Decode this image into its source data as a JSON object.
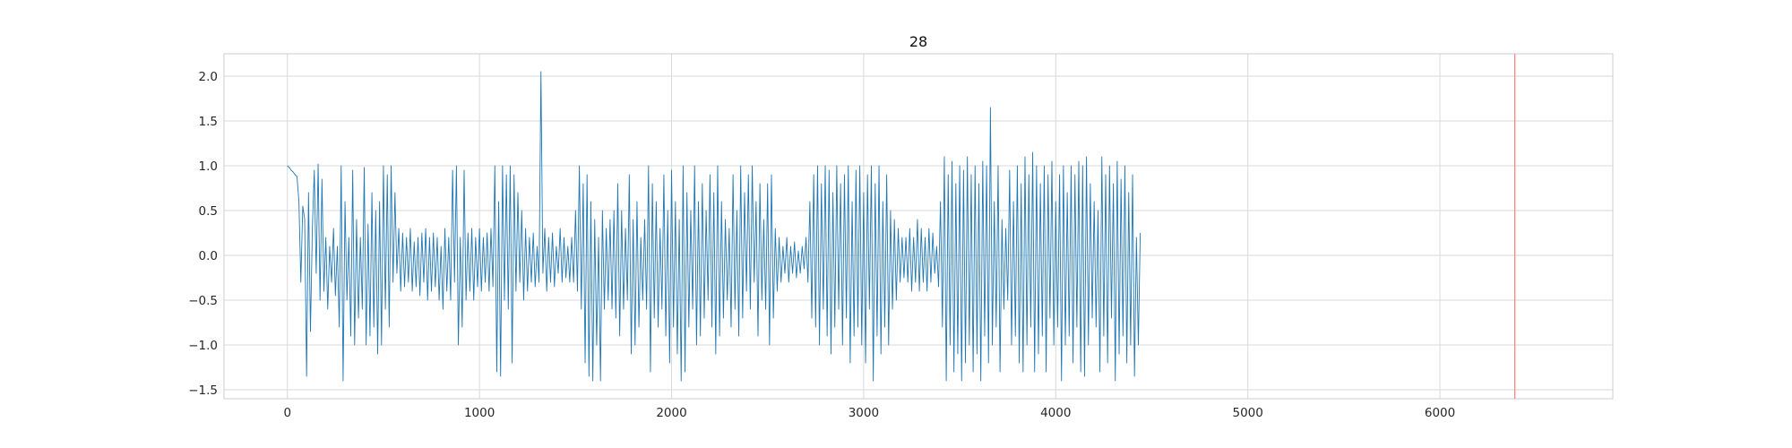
{
  "chart_data": {
    "type": "line",
    "title": "28",
    "xlabel": "",
    "ylabel": "",
    "xlim": [
      -330,
      6900
    ],
    "ylim": [
      -1.6,
      2.25
    ],
    "xticks": [
      0,
      1000,
      2000,
      3000,
      4000,
      5000,
      6000
    ],
    "xtick_labels": [
      "0",
      "1000",
      "2000",
      "3000",
      "4000",
      "5000",
      "6000"
    ],
    "yticks": [
      -1.5,
      -1.0,
      -0.5,
      0.0,
      0.5,
      1.0,
      1.5,
      2.0
    ],
    "ytick_labels": [
      "−1.5",
      "−1.0",
      "−0.5",
      "0.0",
      "0.5",
      "1.0",
      "1.5",
      "2.0"
    ],
    "grid": true,
    "vline": {
      "x": 6390,
      "color": "#f08080"
    },
    "series": [
      {
        "color": "#1f77b4",
        "x_start": 0,
        "x_step": 10,
        "values": [
          1.0,
          0.98,
          0.95,
          0.93,
          0.9,
          0.88,
          0.6,
          -0.3,
          0.55,
          0.4,
          -1.35,
          0.7,
          -0.85,
          0.3,
          0.95,
          -0.2,
          1.02,
          -0.5,
          0.85,
          -0.4,
          0.2,
          -0.6,
          0.1,
          -0.3,
          0.3,
          -0.45,
          0.1,
          -0.8,
          1.0,
          -1.4,
          0.6,
          -0.5,
          0.2,
          -0.9,
          0.95,
          -1.0,
          0.4,
          -0.7,
          0.2,
          -0.6,
          0.98,
          -1.0,
          0.35,
          -0.9,
          0.7,
          -0.8,
          0.5,
          -1.1,
          0.6,
          -1.0,
          1.0,
          -0.6,
          0.9,
          -0.8,
          1.0,
          -0.3,
          0.7,
          -0.2,
          0.3,
          -0.4,
          0.25,
          -0.35,
          0.2,
          -0.3,
          0.3,
          -0.4,
          0.15,
          -0.35,
          0.2,
          -0.45,
          0.25,
          -0.3,
          0.3,
          -0.5,
          0.2,
          -0.4,
          0.25,
          -0.35,
          0.2,
          -0.5,
          0.1,
          -0.6,
          0.3,
          -0.4,
          0.2,
          -0.5,
          0.95,
          -0.3,
          1.0,
          -1.0,
          0.2,
          -0.8,
          0.95,
          -0.5,
          0.25,
          -0.4,
          0.3,
          -0.5,
          0.2,
          -0.35,
          0.3,
          -0.4,
          0.2,
          -0.3,
          0.25,
          -0.4,
          0.3,
          -0.35,
          1.0,
          -1.3,
          0.6,
          -1.35,
          1.0,
          -0.5,
          0.9,
          -0.6,
          1.0,
          -1.2,
          0.9,
          -0.4,
          0.7,
          -0.3,
          0.5,
          -0.5,
          0.3,
          -0.4,
          0.2,
          -0.3,
          0.25,
          -0.35,
          0.1,
          -0.3,
          2.05,
          -0.2,
          0.3,
          -0.4,
          0.2,
          -0.3,
          0.25,
          -0.35,
          0.1,
          -0.2,
          0.3,
          -0.3,
          0.2,
          -0.25,
          0.1,
          -0.3,
          0.2,
          -0.3,
          0.5,
          -0.4,
          1.0,
          -0.6,
          0.8,
          -1.2,
          0.9,
          -1.35,
          0.6,
          -1.4,
          0.4,
          -1.0,
          0.2,
          -1.4,
          0.5,
          -0.6,
          0.3,
          -0.5,
          0.4,
          -0.6,
          0.5,
          -0.7,
          0.8,
          -0.9,
          0.5,
          -0.6,
          0.3,
          -0.5,
          0.9,
          -1.1,
          0.4,
          -1.0,
          0.6,
          -0.8,
          0.2,
          -0.5,
          0.4,
          -0.6,
          1.0,
          -1.3,
          0.8,
          -0.7,
          0.6,
          -0.8,
          0.3,
          -0.6,
          0.9,
          -0.9,
          0.5,
          -1.2,
          0.95,
          -0.8,
          0.6,
          -1.1,
          0.4,
          -1.4,
          1.0,
          -1.3,
          0.7,
          -0.8,
          0.5,
          -0.6,
          1.0,
          -1.0,
          0.6,
          -0.9,
          0.8,
          -0.7,
          0.5,
          -0.5,
          0.9,
          -0.8,
          0.7,
          -1.1,
          1.0,
          -0.9,
          0.6,
          -0.7,
          0.4,
          -0.5,
          0.3,
          -0.8,
          0.9,
          -0.6,
          0.5,
          -0.9,
          1.0,
          -0.7,
          0.7,
          -0.4,
          0.9,
          -0.6,
          1.0,
          -0.3,
          0.6,
          -0.9,
          0.8,
          -0.5,
          0.4,
          -0.6,
          0.8,
          -1.0,
          0.9,
          -0.7,
          0.3,
          -0.4,
          0.2,
          -0.3,
          0.1,
          -0.2,
          0.2,
          -0.3,
          0.1,
          -0.2,
          0.15,
          -0.25,
          0.05,
          -0.2,
          0.1,
          -0.15,
          0.2,
          -0.3,
          0.6,
          -0.7,
          0.9,
          -0.8,
          1.0,
          -1.0,
          0.8,
          -0.6,
          1.0,
          -0.9,
          0.95,
          -1.1,
          0.7,
          -0.8,
          1.0,
          -0.6,
          0.8,
          -1.0,
          0.9,
          -0.7,
          1.0,
          -1.2,
          0.6,
          -0.9,
          0.95,
          -0.8,
          1.0,
          -1.0,
          0.7,
          -1.2,
          0.9,
          -0.6,
          1.0,
          -1.4,
          0.8,
          -0.9,
          1.0,
          -1.1,
          0.6,
          -0.8,
          0.9,
          -1.0,
          0.5,
          -0.6,
          0.4,
          -0.5,
          0.3,
          -0.3,
          0.2,
          -0.25,
          0.2,
          -0.3,
          0.3,
          -0.4,
          0.2,
          -0.3,
          0.4,
          -0.4,
          0.3,
          -0.3,
          0.2,
          -0.4,
          0.3,
          -0.3,
          0.25,
          -0.2,
          0.1,
          -0.35,
          0.6,
          -0.8,
          1.1,
          -1.4,
          0.9,
          -1.0,
          1.05,
          -1.3,
          0.8,
          -1.1,
          1.0,
          -1.4,
          0.95,
          -1.2,
          1.1,
          -1.0,
          0.9,
          -1.3,
          1.0,
          -1.1,
          0.8,
          -1.4,
          1.05,
          -0.9,
          1.0,
          -1.2,
          1.65,
          -1.0,
          0.6,
          -0.8,
          1.0,
          -1.3,
          0.4,
          -0.6,
          0.3,
          -0.5,
          0.95,
          -1.0,
          0.6,
          -0.9,
          1.0,
          -1.2,
          0.8,
          -1.3,
          1.1,
          -1.0,
          0.9,
          -0.8,
          1.15,
          -1.3,
          1.0,
          -1.1,
          0.8,
          -0.9,
          1.0,
          -1.3,
          0.9,
          -0.7,
          1.05,
          -1.0,
          0.6,
          -0.8,
          0.9,
          -1.4,
          1.0,
          -1.0,
          0.7,
          -0.9,
          1.0,
          -1.2,
          0.9,
          -0.8,
          1.05,
          -1.3,
          1.0,
          -1.35,
          1.1,
          -1.0,
          0.8,
          -0.7,
          0.6,
          -0.8,
          0.5,
          -1.3,
          1.1,
          -0.9,
          0.9,
          -1.2,
          1.0,
          -0.7,
          0.8,
          -1.4,
          1.05,
          -1.1,
          0.85,
          -0.9,
          1.0,
          -1.2,
          0.7,
          -1.0,
          0.9,
          -1.35,
          0.2,
          -1.0,
          0.25
        ]
      }
    ]
  }
}
